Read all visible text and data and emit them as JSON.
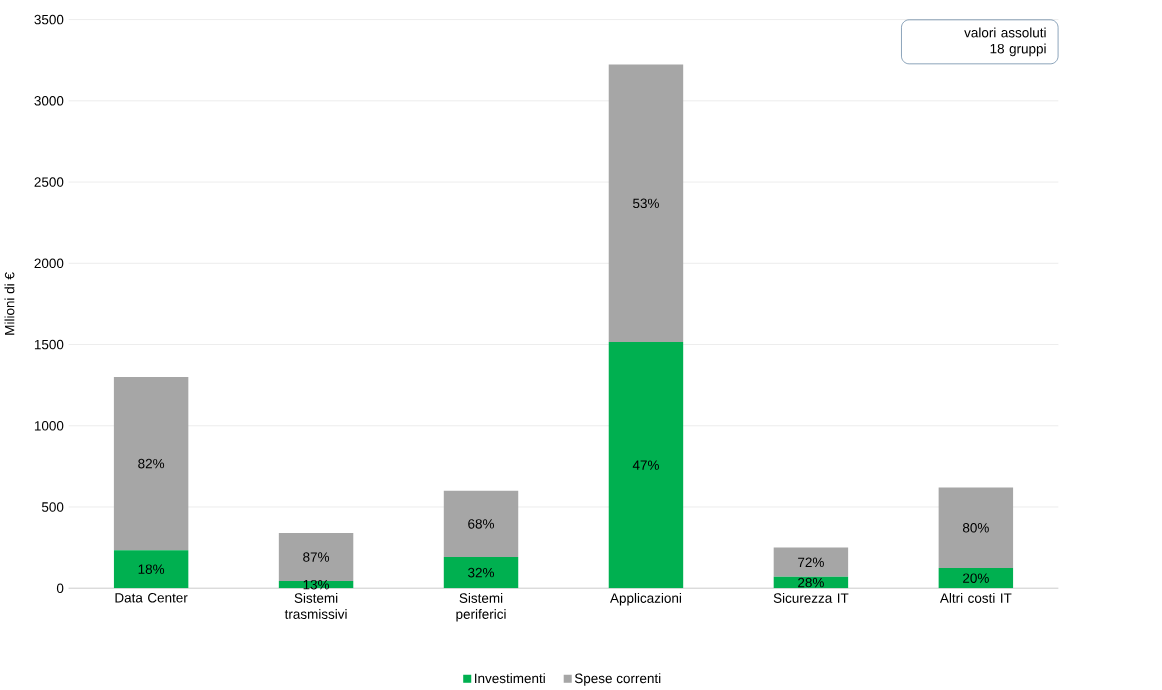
{
  "chart_data": {
    "type": "bar",
    "stacked": true,
    "ylabel": "Milioni di €",
    "categories": [
      "Data Center",
      "Sistemi trasmissivi",
      "Sistemi periferici",
      "Applicazioni",
      "Sicurezza IT",
      "Altri costi IT"
    ],
    "series": [
      {
        "name": "Investimenti",
        "color": "#00b050",
        "values": [
          234,
          44,
          192,
          1515,
          70,
          124
        ]
      },
      {
        "name": "Spese correnti",
        "color": "#a6a6a6",
        "values": [
          1066,
          296,
          408,
          1708,
          180,
          496
        ]
      }
    ],
    "ylim": [
      0,
      3500
    ],
    "yticks": [
      0,
      500,
      1000,
      1500,
      2000,
      2500,
      3000,
      3500
    ],
    "grid": "y",
    "legend": "bottom",
    "annotations": [
      "valori assoluti",
      "18 gruppi",
      "18%",
      "13%",
      "32%",
      "47%",
      "28%",
      "20%",
      "82%",
      "87%",
      "68%",
      "53%",
      "72%",
      "80%"
    ]
  }
}
